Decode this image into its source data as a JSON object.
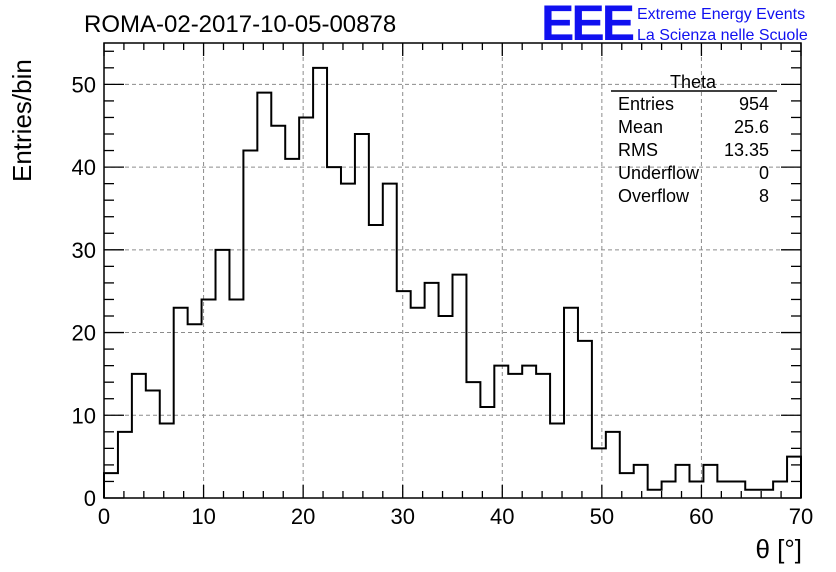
{
  "logo": {
    "mark": "EEE",
    "line1": "Extreme Energy Events",
    "line2": "La Scienza nelle Scuole",
    "color": "#1010f0"
  },
  "chart_data": {
    "type": "bar",
    "title": "ROMA-02-2017-10-05-00878",
    "xlabel": "θ [°]",
    "ylabel": "Entries/bin",
    "xlim": [
      0,
      70
    ],
    "ylim": [
      0,
      55
    ],
    "grid": true,
    "bin_width": 1.4,
    "x_ticks": [
      0,
      10,
      20,
      30,
      40,
      50,
      60,
      70
    ],
    "y_ticks": [
      0,
      10,
      20,
      30,
      40,
      50
    ],
    "bin_edges": [
      0,
      1.4,
      2.8,
      4.2,
      5.6,
      7.0,
      8.4,
      9.8,
      11.2,
      12.6,
      14.0,
      15.4,
      16.8,
      18.2,
      19.6,
      21.0,
      22.4,
      23.8,
      25.2,
      26.6,
      28.0,
      29.4,
      30.8,
      32.2,
      33.6,
      35.0,
      36.4,
      37.8,
      39.2,
      40.6,
      42.0,
      43.4,
      44.8,
      46.2,
      47.6,
      49.0,
      50.4,
      51.8,
      53.2,
      54.6,
      56.0,
      57.4,
      58.8,
      60.2,
      61.6,
      63.0,
      64.4,
      65.8,
      67.2,
      68.6,
      70.0
    ],
    "values": [
      3,
      8,
      15,
      13,
      9,
      23,
      21,
      24,
      30,
      24,
      42,
      49,
      45,
      41,
      46,
      52,
      40,
      38,
      44,
      33,
      38,
      25,
      23,
      26,
      22,
      27,
      14,
      11,
      16,
      15,
      16,
      15,
      9,
      23,
      19,
      6,
      8,
      3,
      4,
      1,
      2,
      4,
      2,
      4,
      2,
      2,
      1,
      1,
      2,
      5
    ],
    "stats_box": {
      "name": "Theta",
      "position": "top-right",
      "rows": [
        {
          "label": "Entries",
          "value": "954"
        },
        {
          "label": "Mean",
          "value": "25.6"
        },
        {
          "label": "RMS",
          "value": "13.35"
        },
        {
          "label": "Underflow",
          "value": "0"
        },
        {
          "label": "Overflow",
          "value": "8"
        }
      ]
    }
  }
}
